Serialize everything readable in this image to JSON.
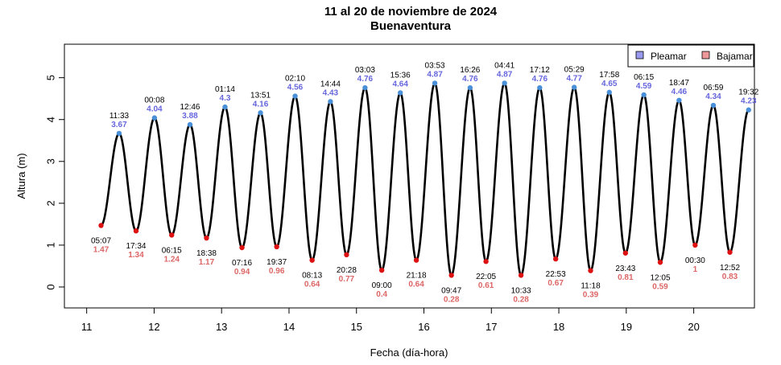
{
  "chart_data": {
    "type": "line",
    "title": "11 al 20 de noviembre de 2024",
    "subtitle": "Buenaventura",
    "xlabel": "Fecha (día-hora)",
    "ylabel": "Altura (m)",
    "xlim": [
      10.67,
      20.9
    ],
    "ylim": [
      -0.5,
      5.8
    ],
    "x_ticks": [
      11,
      12,
      13,
      14,
      15,
      16,
      17,
      18,
      19,
      20
    ],
    "y_ticks": [
      0,
      1,
      2,
      3,
      4,
      5
    ],
    "grid": false,
    "legend_position": "top-right",
    "legend": [
      {
        "label": "Pleamar",
        "color": "#9999ee"
      },
      {
        "label": "Bajamar",
        "color": "#ee9999"
      }
    ],
    "colors": {
      "line": "#000000",
      "high_point": "#4a90d9",
      "low_point": "#dd1111",
      "high_label": "#6666dd",
      "low_label": "#dd6666"
    },
    "series": [
      {
        "name": "Bajamar",
        "points": [
          {
            "day": 11,
            "time": "05:07",
            "height": 1.47
          },
          {
            "day": 11,
            "time": "17:34",
            "height": 1.34
          },
          {
            "day": 12,
            "time": "06:15",
            "height": 1.24
          },
          {
            "day": 12,
            "time": "18:38",
            "height": 1.17
          },
          {
            "day": 13,
            "time": "07:16",
            "height": 0.94
          },
          {
            "day": 13,
            "time": "19:37",
            "height": 0.96
          },
          {
            "day": 14,
            "time": "08:13",
            "height": 0.64
          },
          {
            "day": 14,
            "time": "20:28",
            "height": 0.77
          },
          {
            "day": 15,
            "time": "09:00",
            "height": 0.4
          },
          {
            "day": 15,
            "time": "21:18",
            "height": 0.64
          },
          {
            "day": 16,
            "time": "09:47",
            "height": 0.28
          },
          {
            "day": 16,
            "time": "22:05",
            "height": 0.61
          },
          {
            "day": 17,
            "time": "10:33",
            "height": 0.28
          },
          {
            "day": 17,
            "time": "22:53",
            "height": 0.67
          },
          {
            "day": 18,
            "time": "11:18",
            "height": 0.39
          },
          {
            "day": 18,
            "time": "23:43",
            "height": 0.81
          },
          {
            "day": 19,
            "time": "12:05",
            "height": 0.59
          },
          {
            "day": 20,
            "time": "00:30",
            "height": 1
          },
          {
            "day": 20,
            "time": "12:52",
            "height": 0.83
          }
        ]
      },
      {
        "name": "Pleamar",
        "points": [
          {
            "day": 11,
            "time": "11:33",
            "height": 3.67
          },
          {
            "day": 12,
            "time": "00:08",
            "height": 4.04
          },
          {
            "day": 12,
            "time": "12:46",
            "height": 3.88
          },
          {
            "day": 13,
            "time": "01:14",
            "height": 4.3
          },
          {
            "day": 13,
            "time": "13:51",
            "height": 4.16
          },
          {
            "day": 14,
            "time": "02:10",
            "height": 4.56
          },
          {
            "day": 14,
            "time": "14:44",
            "height": 4.43
          },
          {
            "day": 15,
            "time": "03:03",
            "height": 4.76
          },
          {
            "day": 15,
            "time": "15:36",
            "height": 4.64
          },
          {
            "day": 16,
            "time": "03:53",
            "height": 4.87
          },
          {
            "day": 16,
            "time": "16:26",
            "height": 4.76
          },
          {
            "day": 17,
            "time": "04:41",
            "height": 4.87
          },
          {
            "day": 17,
            "time": "17:12",
            "height": 4.76
          },
          {
            "day": 18,
            "time": "05:29",
            "height": 4.77
          },
          {
            "day": 18,
            "time": "17:58",
            "height": 4.65
          },
          {
            "day": 19,
            "time": "06:15",
            "height": 4.59
          },
          {
            "day": 19,
            "time": "18:47",
            "height": 4.46
          },
          {
            "day": 20,
            "time": "06:59",
            "height": 4.34
          },
          {
            "day": 20,
            "time": "19:32",
            "height": 4.23
          }
        ]
      }
    ]
  }
}
